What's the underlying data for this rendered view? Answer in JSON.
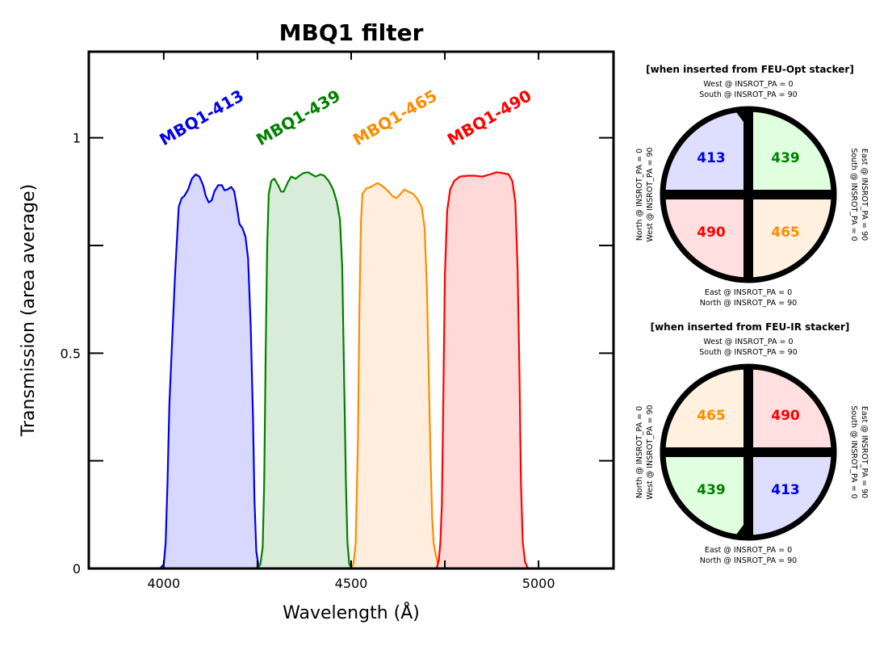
{
  "chart_data": {
    "type": "area",
    "title": "MBQ1 filter",
    "xlabel": "Wavelength (Å)",
    "ylabel": "Transmission (area average)",
    "xlim": [
      3800,
      5200
    ],
    "ylim": [
      0,
      1.2
    ],
    "xticks": [
      4000,
      4500,
      5000
    ],
    "xtick_labels": [
      "4000",
      "4500",
      "5000"
    ],
    "yticks": [
      0,
      0.5,
      1
    ],
    "ytick_labels": [
      "0",
      "0.5",
      "1"
    ],
    "grid": false,
    "series": [
      {
        "name": "MBQ1-413",
        "color": "#0000ee",
        "fill": "#d8d8ff",
        "label_x": 4000,
        "points": [
          [
            3990,
            0
          ],
          [
            4000,
            0.01
          ],
          [
            4005,
            0.06
          ],
          [
            4010,
            0.2
          ],
          [
            4015,
            0.38
          ],
          [
            4020,
            0.48
          ],
          [
            4030,
            0.68
          ],
          [
            4040,
            0.84
          ],
          [
            4048,
            0.86
          ],
          [
            4055,
            0.865
          ],
          [
            4065,
            0.88
          ],
          [
            4075,
            0.905
          ],
          [
            4085,
            0.915
          ],
          [
            4095,
            0.91
          ],
          [
            4105,
            0.89
          ],
          [
            4112,
            0.865
          ],
          [
            4120,
            0.85
          ],
          [
            4128,
            0.855
          ],
          [
            4135,
            0.875
          ],
          [
            4145,
            0.89
          ],
          [
            4155,
            0.89
          ],
          [
            4162,
            0.878
          ],
          [
            4170,
            0.88
          ],
          [
            4180,
            0.886
          ],
          [
            4188,
            0.876
          ],
          [
            4195,
            0.84
          ],
          [
            4202,
            0.8
          ],
          [
            4210,
            0.79
          ],
          [
            4218,
            0.77
          ],
          [
            4225,
            0.72
          ],
          [
            4232,
            0.56
          ],
          [
            4238,
            0.35
          ],
          [
            4242,
            0.16
          ],
          [
            4247,
            0.04
          ],
          [
            4252,
            0.01
          ],
          [
            4258,
            0
          ]
        ]
      },
      {
        "name": "MBQ1-439",
        "color": "#008000",
        "fill": "#d9ecd9",
        "label_x": 4258,
        "points": [
          [
            4250,
            0
          ],
          [
            4258,
            0.01
          ],
          [
            4264,
            0.05
          ],
          [
            4268,
            0.2
          ],
          [
            4272,
            0.5
          ],
          [
            4276,
            0.75
          ],
          [
            4280,
            0.87
          ],
          [
            4287,
            0.9
          ],
          [
            4295,
            0.905
          ],
          [
            4305,
            0.89
          ],
          [
            4313,
            0.875
          ],
          [
            4320,
            0.875
          ],
          [
            4330,
            0.895
          ],
          [
            4340,
            0.91
          ],
          [
            4352,
            0.905
          ],
          [
            4362,
            0.912
          ],
          [
            4372,
            0.918
          ],
          [
            4385,
            0.92
          ],
          [
            4395,
            0.915
          ],
          [
            4405,
            0.91
          ],
          [
            4418,
            0.915
          ],
          [
            4428,
            0.912
          ],
          [
            4440,
            0.9
          ],
          [
            4452,
            0.88
          ],
          [
            4462,
            0.85
          ],
          [
            4470,
            0.81
          ],
          [
            4476,
            0.7
          ],
          [
            4481,
            0.45
          ],
          [
            4486,
            0.2
          ],
          [
            4490,
            0.06
          ],
          [
            4495,
            0.01
          ],
          [
            4502,
            0
          ]
        ]
      },
      {
        "name": "MBQ1-465",
        "color": "#ff8c00",
        "fill": "#ffeedd",
        "label_x": 4516,
        "points": [
          [
            4500,
            0
          ],
          [
            4506,
            0.01
          ],
          [
            4512,
            0.06
          ],
          [
            4518,
            0.3
          ],
          [
            4522,
            0.6
          ],
          [
            4526,
            0.8
          ],
          [
            4530,
            0.87
          ],
          [
            4540,
            0.882
          ],
          [
            4550,
            0.885
          ],
          [
            4560,
            0.89
          ],
          [
            4570,
            0.895
          ],
          [
            4580,
            0.89
          ],
          [
            4590,
            0.883
          ],
          [
            4600,
            0.875
          ],
          [
            4610,
            0.865
          ],
          [
            4620,
            0.86
          ],
          [
            4632,
            0.87
          ],
          [
            4642,
            0.88
          ],
          [
            4652,
            0.875
          ],
          [
            4665,
            0.87
          ],
          [
            4675,
            0.86
          ],
          [
            4688,
            0.84
          ],
          [
            4696,
            0.79
          ],
          [
            4702,
            0.65
          ],
          [
            4707,
            0.45
          ],
          [
            4712,
            0.25
          ],
          [
            4716,
            0.12
          ],
          [
            4720,
            0.06
          ],
          [
            4726,
            0.03
          ],
          [
            4732,
            0.01
          ],
          [
            4740,
            0
          ]
        ]
      },
      {
        "name": "MBQ1-490",
        "color": "#ff0000",
        "fill": "#ffd8d8",
        "label_x": 4768,
        "points": [
          [
            4728,
            0
          ],
          [
            4734,
            0.02
          ],
          [
            4738,
            0.06
          ],
          [
            4742,
            0.15
          ],
          [
            4746,
            0.4
          ],
          [
            4750,
            0.68
          ],
          [
            4756,
            0.83
          ],
          [
            4764,
            0.88
          ],
          [
            4775,
            0.9
          ],
          [
            4790,
            0.91
          ],
          [
            4810,
            0.912
          ],
          [
            4830,
            0.912
          ],
          [
            4850,
            0.91
          ],
          [
            4870,
            0.915
          ],
          [
            4888,
            0.92
          ],
          [
            4905,
            0.918
          ],
          [
            4920,
            0.915
          ],
          [
            4930,
            0.9
          ],
          [
            4938,
            0.85
          ],
          [
            4944,
            0.7
          ],
          [
            4949,
            0.45
          ],
          [
            4953,
            0.2
          ],
          [
            4958,
            0.06
          ],
          [
            4964,
            0.015
          ],
          [
            4972,
            0
          ]
        ]
      }
    ]
  },
  "diagrams": [
    {
      "title": "[when inserted from FEU-Opt stacker]",
      "top": [
        "West @ INSROT_PA =  0",
        "South @ INSROT_PA = 90"
      ],
      "bottom": [
        "East @ INSROT_PA =  0",
        "North @ INSROT_PA = 90"
      ],
      "left": [
        "North @ INSROT_PA =  0",
        "West @ INSROT_PA = 90"
      ],
      "right": [
        "South @ INSROT_PA =  0",
        "East @ INSROT_PA = 90"
      ],
      "quadrants": [
        {
          "label": "413",
          "color": "#0000ee",
          "fill": "#dedeff"
        },
        {
          "label": "439",
          "color": "#008000",
          "fill": "#dfffdf"
        },
        {
          "label": "490",
          "color": "#ff0000",
          "fill": "#ffdfdf"
        },
        {
          "label": "465",
          "color": "#ff8c00",
          "fill": "#fff0e0"
        }
      ]
    },
    {
      "title": "[when inserted from FEU-IR stacker]",
      "top": [
        "West @ INSROT_PA =  0",
        "South @ INSROT_PA = 90"
      ],
      "bottom": [
        "East @ INSROT_PA =  0",
        "North @ INSROT_PA = 90"
      ],
      "left": [
        "North @ INSROT_PA =  0",
        "West @ INSROT_PA = 90"
      ],
      "right": [
        "South @ INSROT_PA =  0",
        "East @ INSROT_PA = 90"
      ],
      "quadrants": [
        {
          "label": "465",
          "color": "#ff8c00",
          "fill": "#fff0e0"
        },
        {
          "label": "490",
          "color": "#ff0000",
          "fill": "#ffdfdf"
        },
        {
          "label": "439",
          "color": "#008000",
          "fill": "#dfffdf"
        },
        {
          "label": "413",
          "color": "#0000ee",
          "fill": "#dedeff"
        }
      ]
    }
  ]
}
